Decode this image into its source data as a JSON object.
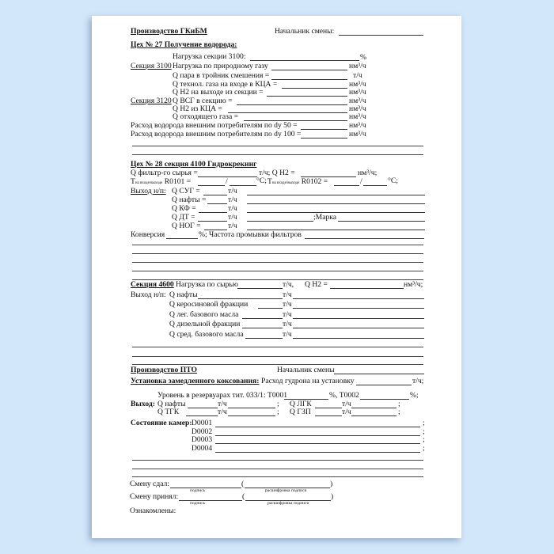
{
  "colors": {
    "background": "#d3e7fb",
    "paper": "#ffffff"
  },
  "gkibm": {
    "title": "Производство ГКиБМ",
    "chief": "Начальник смены:",
    "shop27": {
      "title": "Цех № 27 Получение водорода:",
      "sec3100_label": "Секция 3100",
      "sec3120_label": "Секция 3120",
      "rows": [
        {
          "label": "Нагрузка секции 3100:",
          "unit": "%"
        },
        {
          "label": "Нагрузка по природному газу",
          "unit": "нм³/ч"
        },
        {
          "label": "Q пара в тройник смешения =",
          "unit": "т/ч"
        },
        {
          "label": "Q технол. газа на входе в КЦА =",
          "unit": "нм³/ч"
        },
        {
          "label": "Q H2 на выходе из секции =",
          "unit": "нм³/ч"
        },
        {
          "label": "Q ВСГ в секцию =",
          "unit": "нм³/ч"
        },
        {
          "label": "Q H2 из КЦА =",
          "unit": "нм³/ч"
        },
        {
          "label": "Q отходящего газа =",
          "unit": "нм³/ч"
        },
        {
          "label": "Расход водорода внешним потребителям по dу 50 =",
          "unit": "нм³/ч"
        },
        {
          "label": "Расход водорода внешним потребителям по dу 100 =",
          "unit": "нм³/ч"
        }
      ]
    },
    "shop28": {
      "title": "Цех № 28 секция 4100 Гидрокрекинг",
      "feed": "Q фильтр-го сырья =",
      "feed_unit": "т/ч; Q H2 =",
      "h2_unit": "нм³/ч;",
      "t_label": "T",
      "t_sub": "на входе/выходе",
      "r1": "R0101 =",
      "r2": "R0102 =",
      "deg1": "°C; ",
      "deg2": "°C;",
      "slash": "/",
      "out_label": "Выход н/п:",
      "outputs": [
        "Q СУГ =",
        "Q нафты =",
        "Q КФ =",
        "Q ДТ =",
        "Q НОГ ="
      ],
      "unit": "т/ч",
      "brand": ";Марка",
      "conversion": "Конверсия",
      "conv_unit": "%; Частота промывки фильтров"
    },
    "sec4600": {
      "title": "Секция 4600",
      "load": "Нагрузка по сырью",
      "load_unit": "т/ч,",
      "h2": "Q H2 =",
      "h2_unit": "нм³/ч;",
      "out_label": "Выход н/п:",
      "unit": "т/ч",
      "outputs": [
        "Q нафты",
        "Q керосиновой фракции",
        "Q лег. базового масла",
        "Q дизельной фракции",
        "Q сред. базового масла"
      ]
    }
  },
  "pto": {
    "title": "Производство ПТО",
    "chief": "Начальник смены",
    "coking": "Установка замедленного коксования:",
    "tar": "Расход гудрона на установку",
    "tar_unit": "т/ч;",
    "level": "Уровень в резервуарах тит. 033/1: Т0001",
    "level_pct": "%, Т0002",
    "level_end": "%;",
    "out_label": "Выход:",
    "unit": "т/ч",
    "semi": ";",
    "outputs": [
      "Q нафты",
      "Q ЛГК",
      "Q ТГК",
      "Q ГЗП"
    ],
    "chambers_label": "Состояние камер:",
    "chambers": [
      "D0001",
      "D0002",
      "D0003",
      "D0004"
    ]
  },
  "signatures": {
    "handed": "Смену сдал:",
    "accepted": "Смену принял:",
    "sign": "подпись",
    "decode": "расшифровка подписи",
    "open": "(",
    "close": ")",
    "acquainted": "Ознакомлены:"
  }
}
